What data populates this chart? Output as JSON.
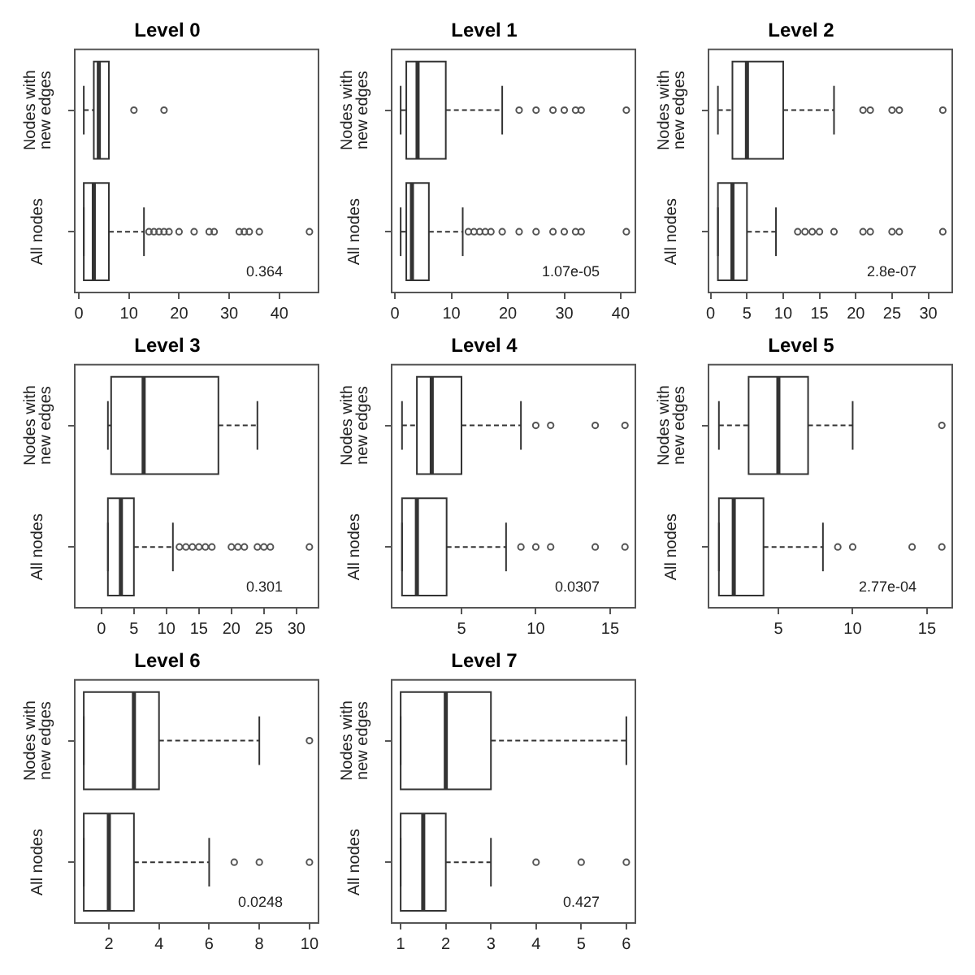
{
  "chart_data": [
    {
      "type": "box",
      "title": "Level 0",
      "orientation": "horizontal",
      "categories": [
        "Nodes with new edges",
        "All nodes"
      ],
      "xlim": [
        -0.8,
        47.8
      ],
      "xticks": [
        0,
        10,
        20,
        30,
        40
      ],
      "annotations": [
        "0.364"
      ],
      "boxes": [
        {
          "low": 1,
          "q1": 3,
          "median": 4,
          "q3": 6,
          "high": 6,
          "outliers": [
            11,
            17
          ]
        },
        {
          "low": 1,
          "q1": 1,
          "median": 3,
          "q3": 6,
          "high": 13,
          "outliers": [
            14,
            15,
            16,
            17,
            18,
            20,
            23,
            26,
            27,
            32,
            33,
            34,
            36,
            46
          ]
        }
      ]
    },
    {
      "type": "box",
      "title": "Level 1",
      "orientation": "horizontal",
      "categories": [
        "Nodes with new edges",
        "All nodes"
      ],
      "xlim": [
        -0.6,
        42.6
      ],
      "xticks": [
        0,
        10,
        20,
        30,
        40
      ],
      "annotations": [
        "1.07e-05"
      ],
      "boxes": [
        {
          "low": 1,
          "q1": 2,
          "median": 4,
          "q3": 9,
          "high": 19,
          "outliers": [
            22,
            25,
            28,
            30,
            32,
            33,
            41
          ]
        },
        {
          "low": 1,
          "q1": 2,
          "median": 3,
          "q3": 6,
          "high": 12,
          "outliers": [
            13,
            14,
            15,
            16,
            17,
            19,
            22,
            25,
            28,
            30,
            32,
            33,
            41
          ]
        }
      ]
    },
    {
      "type": "box",
      "title": "Level 2",
      "orientation": "horizontal",
      "categories": [
        "Nodes with new edges",
        "All nodes"
      ],
      "xlim": [
        -0.3,
        33.3
      ],
      "xticks": [
        0,
        5,
        10,
        15,
        20,
        25,
        30
      ],
      "annotations": [
        "2.8e-07"
      ],
      "boxes": [
        {
          "low": 1,
          "q1": 3,
          "median": 5,
          "q3": 10,
          "high": 17,
          "outliers": [
            21,
            22,
            25,
            26,
            32
          ]
        },
        {
          "low": 1,
          "q1": 1,
          "median": 3,
          "q3": 5,
          "high": 9,
          "outliers": [
            12,
            13,
            14,
            15,
            17,
            21,
            22,
            25,
            26,
            32
          ]
        }
      ]
    },
    {
      "type": "box",
      "title": "Level 3",
      "orientation": "horizontal",
      "categories": [
        "Nodes with new edges",
        "All nodes"
      ],
      "xlim": [
        -4.1,
        33.4
      ],
      "xticks": [
        0,
        5,
        10,
        15,
        20,
        25,
        30
      ],
      "annotations": [
        "0.301"
      ],
      "boxes": [
        {
          "low": 1,
          "q1": 1.5,
          "median": 6.5,
          "q3": 18,
          "high": 24
        },
        {
          "low": 1,
          "q1": 1,
          "median": 3,
          "q3": 5,
          "high": 11,
          "outliers": [
            12,
            13,
            14,
            15,
            16,
            17,
            20,
            21,
            22,
            24,
            25,
            26,
            32
          ]
        }
      ]
    },
    {
      "type": "box",
      "title": "Level 4",
      "orientation": "horizontal",
      "categories": [
        "Nodes with new edges",
        "All nodes"
      ],
      "xlim": [
        0.3,
        16.7
      ],
      "xticks": [
        5,
        10,
        15
      ],
      "annotations": [
        "0.0307"
      ],
      "boxes": [
        {
          "low": 1,
          "q1": 2,
          "median": 3,
          "q3": 5,
          "high": 9,
          "outliers": [
            10,
            11,
            14,
            16
          ]
        },
        {
          "low": 1,
          "q1": 1,
          "median": 2,
          "q3": 4,
          "high": 8,
          "outliers": [
            9,
            10,
            11,
            14,
            16
          ]
        }
      ]
    },
    {
      "type": "box",
      "title": "Level 5",
      "orientation": "horizontal",
      "categories": [
        "Nodes with new edges",
        "All nodes"
      ],
      "xlim": [
        0.3,
        16.7
      ],
      "xticks": [
        5,
        10,
        15
      ],
      "annotations": [
        "2.77e-04"
      ],
      "boxes": [
        {
          "low": 1,
          "q1": 3,
          "median": 5,
          "q3": 7,
          "high": 10,
          "outliers": [
            16
          ]
        },
        {
          "low": 1,
          "q1": 1,
          "median": 2,
          "q3": 4,
          "high": 8,
          "outliers": [
            9,
            10,
            14,
            16
          ]
        }
      ]
    },
    {
      "type": "box",
      "title": "Level 6",
      "orientation": "horizontal",
      "categories": [
        "Nodes with new edges",
        "All nodes"
      ],
      "xlim": [
        0.64,
        10.36
      ],
      "xticks": [
        2,
        4,
        6,
        8,
        10
      ],
      "annotations": [
        "0.0248"
      ],
      "boxes": [
        {
          "low": 1,
          "q1": 1,
          "median": 3,
          "q3": 4,
          "high": 8,
          "outliers": [
            10
          ]
        },
        {
          "low": 1,
          "q1": 1,
          "median": 2,
          "q3": 3,
          "high": 6,
          "outliers": [
            7,
            8,
            10
          ]
        }
      ]
    },
    {
      "type": "box",
      "title": "Level 7",
      "orientation": "horizontal",
      "categories": [
        "Nodes with new edges",
        "All nodes"
      ],
      "xlim": [
        0.8,
        6.2
      ],
      "xticks": [
        1,
        2,
        3,
        4,
        5,
        6
      ],
      "annotations": [
        "0.427"
      ],
      "boxes": [
        {
          "low": 1,
          "q1": 1,
          "median": 2,
          "q3": 3,
          "high": 6
        },
        {
          "low": 1,
          "q1": 1,
          "median": 1.5,
          "q3": 2,
          "high": 3,
          "outliers": [
            4,
            5,
            6
          ]
        }
      ]
    }
  ]
}
